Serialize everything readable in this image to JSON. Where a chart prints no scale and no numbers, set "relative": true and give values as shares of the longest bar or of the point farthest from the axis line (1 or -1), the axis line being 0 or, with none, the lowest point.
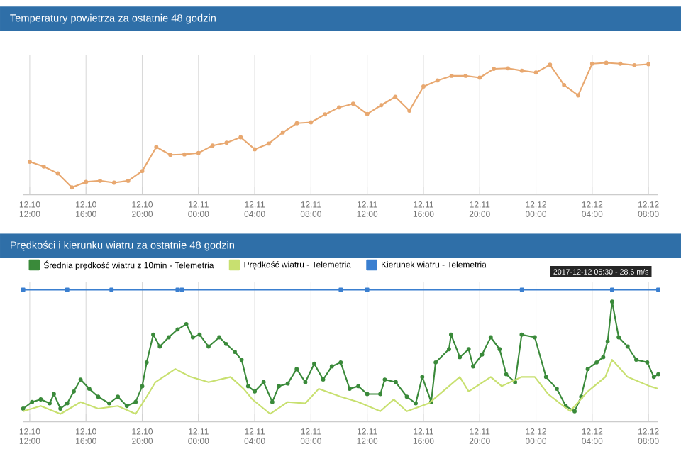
{
  "chart_data": [
    {
      "type": "line",
      "title": "Temperatury powietrza za ostatnie 48 godzin",
      "relative": true,
      "grid": "x",
      "xlim": [
        "2017-12-10T11:30",
        "2017-12-12T08:42"
      ],
      "xticks": [
        {
          "value": "2017-12-10T12:00",
          "label": "12.10 12:00"
        },
        {
          "value": "2017-12-10T16:00",
          "label": "12.10 16:00"
        },
        {
          "value": "2017-12-10T20:00",
          "label": "12.10 20:00"
        },
        {
          "value": "2017-12-11T00:00",
          "label": "12.11 00:00"
        },
        {
          "value": "2017-12-11T04:00",
          "label": "12.11 04:00"
        },
        {
          "value": "2017-12-11T08:00",
          "label": "12.11 08:00"
        },
        {
          "value": "2017-12-11T12:00",
          "label": "12.11 12:00"
        },
        {
          "value": "2017-12-11T16:00",
          "label": "12.11 16:00"
        },
        {
          "value": "2017-12-11T20:00",
          "label": "12.11 20:00"
        },
        {
          "value": "2017-12-12T00:00",
          "label": "12.12 00:00"
        },
        {
          "value": "2017-12-12T04:00",
          "label": "12.12 04:00"
        },
        {
          "value": "2017-12-12T08:00",
          "label": "12.12 08:00"
        }
      ],
      "x": [
        "2017-12-10T12:00",
        "2017-12-10T13:00",
        "2017-12-10T14:00",
        "2017-12-10T15:00",
        "2017-12-10T16:00",
        "2017-12-10T17:00",
        "2017-12-10T18:00",
        "2017-12-10T19:00",
        "2017-12-10T20:00",
        "2017-12-10T21:00",
        "2017-12-10T22:00",
        "2017-12-10T23:00",
        "2017-12-11T00:00",
        "2017-12-11T01:00",
        "2017-12-11T02:00",
        "2017-12-11T03:00",
        "2017-12-11T04:00",
        "2017-12-11T05:00",
        "2017-12-11T06:00",
        "2017-12-11T07:00",
        "2017-12-11T08:00",
        "2017-12-11T09:00",
        "2017-12-11T10:00",
        "2017-12-11T11:00",
        "2017-12-11T12:00",
        "2017-12-11T13:00",
        "2017-12-11T14:00",
        "2017-12-11T15:00",
        "2017-12-11T16:00",
        "2017-12-11T17:00",
        "2017-12-11T18:00",
        "2017-12-11T19:00",
        "2017-12-11T20:00",
        "2017-12-11T21:00",
        "2017-12-11T22:00",
        "2017-12-11T23:00",
        "2017-12-12T00:00",
        "2017-12-12T01:00",
        "2017-12-12T02:00",
        "2017-12-12T03:00",
        "2017-12-12T04:00",
        "2017-12-12T05:00",
        "2017-12-12T06:00",
        "2017-12-12T07:00",
        "2017-12-12T08:00"
      ],
      "series": [
        {
          "color": "#e8a870",
          "marker": "circle",
          "values": [
            0.25,
            0.214,
            0.162,
            0.056,
            0.098,
            0.106,
            0.092,
            0.106,
            0.18,
            0.362,
            0.303,
            0.306,
            0.317,
            0.373,
            0.394,
            0.436,
            0.345,
            0.388,
            0.472,
            0.542,
            0.549,
            0.609,
            0.662,
            0.69,
            0.612,
            0.679,
            0.742,
            0.637,
            0.82,
            0.866,
            0.901,
            0.901,
            0.887,
            0.954,
            0.958,
            0.94,
            0.926,
            0.985,
            0.831,
            0.753,
            0.993,
            1,
            0.993,
            0.982,
            0.989
          ]
        }
      ]
    },
    {
      "type": "line",
      "title": "Prędkości i kierunku wiatru za ostatnie 48 godzin",
      "relative": true,
      "grid": "x",
      "legend": "top left",
      "xlim": [
        "2017-12-10T11:30",
        "2017-12-12T08:42"
      ],
      "xticks": [
        {
          "value": "2017-12-10T12:00",
          "label": "12.10 12:00"
        },
        {
          "value": "2017-12-10T16:00",
          "label": "12.10 16:00"
        },
        {
          "value": "2017-12-10T20:00",
          "label": "12.10 20:00"
        },
        {
          "value": "2017-12-11T00:00",
          "label": "12.11 00:00"
        },
        {
          "value": "2017-12-11T04:00",
          "label": "12.11 04:00"
        },
        {
          "value": "2017-12-11T08:00",
          "label": "12.11 08:00"
        },
        {
          "value": "2017-12-11T12:00",
          "label": "12.11 12:00"
        },
        {
          "value": "2017-12-11T16:00",
          "label": "12.11 16:00"
        },
        {
          "value": "2017-12-11T20:00",
          "label": "12.11 20:00"
        },
        {
          "value": "2017-12-12T00:00",
          "label": "12.12 00:00"
        },
        {
          "value": "2017-12-12T04:00",
          "label": "12.12 04:00"
        },
        {
          "value": "2017-12-12T08:00",
          "label": "12.12 08:00"
        }
      ],
      "annotations": [
        "2017-12-12 05:30 - 28.6 m/s"
      ],
      "series": [
        {
          "name": "Średnia prędkość wiatru z 10min - Telemetria",
          "color": "#3a8a3a",
          "marker": "circle",
          "x": [
            "2017-12-10T11:32",
            "2017-12-10T12:10",
            "2017-12-10T12:47",
            "2017-12-10T13:25",
            "2017-12-10T13:43",
            "2017-12-10T14:11",
            "2017-12-10T14:40",
            "2017-12-10T15:08",
            "2017-12-10T15:37",
            "2017-12-10T16:14",
            "2017-12-10T16:52",
            "2017-12-10T17:39",
            "2017-12-10T18:16",
            "2017-12-10T18:54",
            "2017-12-10T19:32",
            "2017-12-10T20:00",
            "2017-12-10T20:19",
            "2017-12-10T20:47",
            "2017-12-10T21:15",
            "2017-12-10T21:53",
            "2017-12-10T22:31",
            "2017-12-10T23:08",
            "2017-12-10T23:36",
            "2017-12-11T00:05",
            "2017-12-11T00:43",
            "2017-12-11T01:29",
            "2017-12-11T01:58",
            "2017-12-11T02:35",
            "2017-12-11T03:04",
            "2017-12-11T03:32",
            "2017-12-11T04:00",
            "2017-12-11T04:38",
            "2017-12-11T05:15",
            "2017-12-11T05:43",
            "2017-12-11T06:21",
            "2017-12-11T06:59",
            "2017-12-11T07:36",
            "2017-12-11T08:14",
            "2017-12-11T08:52",
            "2017-12-11T09:29",
            "2017-12-11T10:07",
            "2017-12-11T10:45",
            "2017-12-11T11:22",
            "2017-12-11T12:00",
            "2017-12-11T12:56",
            "2017-12-11T13:15",
            "2017-12-11T14:02",
            "2017-12-11T14:49",
            "2017-12-11T15:27",
            "2017-12-11T15:55",
            "2017-12-11T16:33",
            "2017-12-11T16:52",
            "2017-12-11T17:49",
            "2017-12-11T17:58",
            "2017-12-11T18:35",
            "2017-12-11T19:13",
            "2017-12-11T19:32",
            "2017-12-11T20:10",
            "2017-12-11T20:47",
            "2017-12-11T21:25",
            "2017-12-11T21:53",
            "2017-12-11T22:31",
            "2017-12-11T22:59",
            "2017-12-11T23:55",
            "2017-12-12T00:43",
            "2017-12-12T01:29",
            "2017-12-12T02:07",
            "2017-12-12T02:45",
            "2017-12-12T03:13",
            "2017-12-12T03:41",
            "2017-12-12T04:19",
            "2017-12-12T04:47",
            "2017-12-12T05:06",
            "2017-12-12T05:25",
            "2017-12-12T05:53",
            "2017-12-12T06:31",
            "2017-12-12T07:08",
            "2017-12-12T07:55",
            "2017-12-12T08:23",
            "2017-12-12T08:42"
          ],
          "values": [
            0.1,
            0.15,
            0.17,
            0.14,
            0.21,
            0.1,
            0.14,
            0.23,
            0.32,
            0.25,
            0.19,
            0.14,
            0.19,
            0.12,
            0.15,
            0.27,
            0.45,
            0.66,
            0.57,
            0.64,
            0.7,
            0.74,
            0.64,
            0.66,
            0.57,
            0.64,
            0.59,
            0.53,
            0.47,
            0.27,
            0.23,
            0.3,
            0.15,
            0.27,
            0.29,
            0.4,
            0.3,
            0.44,
            0.32,
            0.42,
            0.45,
            0.25,
            0.27,
            0.21,
            0.21,
            0.32,
            0.3,
            0.19,
            0.14,
            0.34,
            0.15,
            0.45,
            0.55,
            0.66,
            0.49,
            0.55,
            0.42,
            0.51,
            0.64,
            0.55,
            0.36,
            0.3,
            0.66,
            0.64,
            0.34,
            0.25,
            0.12,
            0.08,
            0.19,
            0.4,
            0.45,
            0.49,
            0.61,
            0.91,
            0.64,
            0.57,
            0.47,
            0.45,
            0.34,
            0.36
          ]
        },
        {
          "name": "Prędkość wiatru - Telemetria",
          "color": "#c8e070",
          "x": [
            "2017-12-10T11:32",
            "2017-12-10T12:47",
            "2017-12-10T14:11",
            "2017-12-10T15:37",
            "2017-12-10T16:52",
            "2017-12-10T18:16",
            "2017-12-10T19:32",
            "2017-12-10T20:19",
            "2017-12-10T20:56",
            "2017-12-10T22:21",
            "2017-12-10T23:27",
            "2017-12-11T00:43",
            "2017-12-11T02:17",
            "2017-12-11T03:13",
            "2017-12-11T03:50",
            "2017-12-11T05:06",
            "2017-12-11T06:21",
            "2017-12-11T07:36",
            "2017-12-11T08:33",
            "2017-12-11T10:07",
            "2017-12-11T11:22",
            "2017-12-11T12:56",
            "2017-12-11T13:53",
            "2017-12-11T14:49",
            "2017-12-11T16:23",
            "2017-12-11T18:35",
            "2017-12-11T19:13",
            "2017-12-11T20:47",
            "2017-12-11T21:34",
            "2017-12-11T22:59",
            "2017-12-11T23:55",
            "2017-12-12T00:52",
            "2017-12-12T02:26",
            "2017-12-12T03:41",
            "2017-12-12T04:56",
            "2017-12-12T05:25",
            "2017-12-12T06:31",
            "2017-12-12T08:05",
            "2017-12-12T08:42"
          ],
          "values": [
            0.08,
            0.12,
            0.06,
            0.15,
            0.1,
            0.12,
            0.06,
            0.19,
            0.3,
            0.4,
            0.34,
            0.3,
            0.34,
            0.25,
            0.17,
            0.06,
            0.15,
            0.14,
            0.25,
            0.19,
            0.15,
            0.08,
            0.17,
            0.08,
            0.14,
            0.34,
            0.23,
            0.34,
            0.27,
            0.34,
            0.34,
            0.21,
            0.08,
            0.23,
            0.34,
            0.47,
            0.34,
            0.27,
            0.25
          ]
        },
        {
          "name": "Kierunek wiatru - Telemetria",
          "color": "#3a7fd0",
          "marker": "square",
          "x": [
            "2017-12-10T11:32",
            "2017-12-10T14:40",
            "2017-12-10T17:49",
            "2017-12-10T22:31",
            "2017-12-10T22:49",
            "2017-12-11T10:07",
            "2017-12-11T12:00",
            "2017-12-11T23:00",
            "2017-12-12T05:25",
            "2017-12-12T08:42"
          ],
          "values": [
            1,
            1,
            1,
            1,
            1,
            1,
            1,
            1,
            1,
            1
          ]
        }
      ]
    }
  ]
}
